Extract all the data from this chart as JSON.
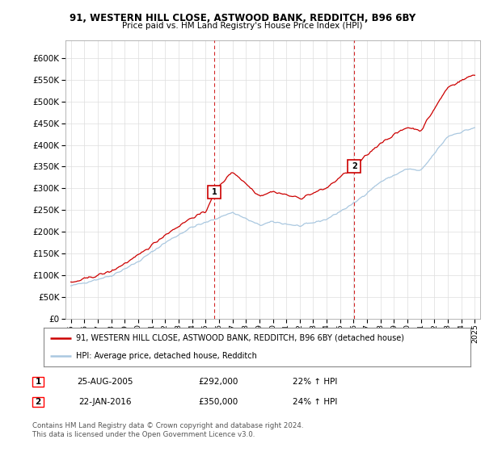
{
  "title1": "91, WESTERN HILL CLOSE, ASTWOOD BANK, REDDITCH, B96 6BY",
  "title2": "Price paid vs. HM Land Registry's House Price Index (HPI)",
  "legend_line1": "91, WESTERN HILL CLOSE, ASTWOOD BANK, REDDITCH, B96 6BY (detached house)",
  "legend_line2": "HPI: Average price, detached house, Redditch",
  "sale1_date": "25-AUG-2005",
  "sale1_price": "£292,000",
  "sale1_hpi": "22% ↑ HPI",
  "sale2_date": "22-JAN-2016",
  "sale2_price": "£350,000",
  "sale2_hpi": "24% ↑ HPI",
  "footnote": "Contains HM Land Registry data © Crown copyright and database right 2024.\nThis data is licensed under the Open Government Licence v3.0.",
  "red_color": "#cc0000",
  "blue_color": "#aac8e0",
  "background_color": "#ffffff",
  "grid_color": "#dddddd",
  "ylim_min": 0,
  "ylim_max": 640000,
  "sale1_year": 2005.65,
  "sale1_value": 292000,
  "sale2_year": 2016.05,
  "sale2_value": 350000
}
